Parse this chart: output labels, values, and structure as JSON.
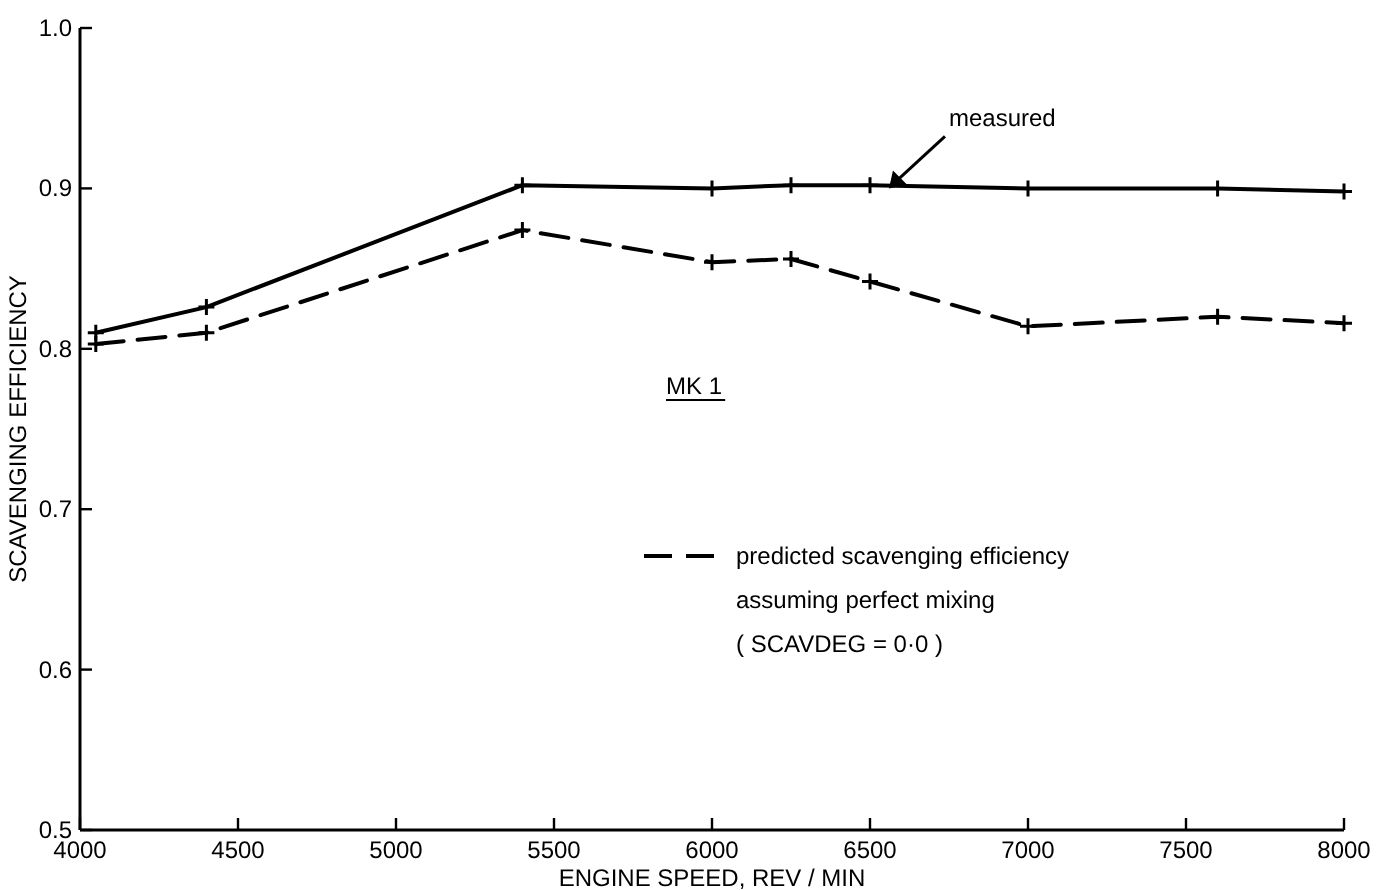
{
  "chart_data": {
    "type": "line",
    "xlabel": "ENGINE  SPEED, REV / MIN",
    "ylabel": "SCAVENGING  EFFICIENCY",
    "x": [
      4050,
      4400,
      5400,
      6000,
      6250,
      6500,
      7000,
      7600,
      8000
    ],
    "series": [
      {
        "name": "measured",
        "color": "#000000",
        "line_style": "solid",
        "values": [
          0.81,
          0.826,
          0.902,
          0.9,
          0.902,
          0.902,
          0.9,
          0.9,
          0.898
        ]
      },
      {
        "name": "predicted scavenging efficiency\nassuming perfect mixing\n( SCAVDEG = 0·0 )",
        "color": "#000000",
        "line_style": "dashed",
        "values": [
          0.803,
          0.81,
          0.874,
          0.854,
          0.856,
          0.842,
          0.814,
          0.82,
          0.816
        ]
      }
    ],
    "xlim": [
      4000,
      8000
    ],
    "xticks": [
      4000,
      4500,
      5000,
      5500,
      6000,
      6500,
      7000,
      7500,
      8000
    ],
    "ylim": [
      0.5,
      1.0
    ],
    "yticks": [
      0.5,
      0.6,
      0.7,
      0.8,
      0.9,
      {
        "value": 1.0,
        "label": "1.0"
      }
    ],
    "annotations": [
      "MK 1"
    ],
    "marker": "cross",
    "grid": false,
    "legend": "right"
  }
}
